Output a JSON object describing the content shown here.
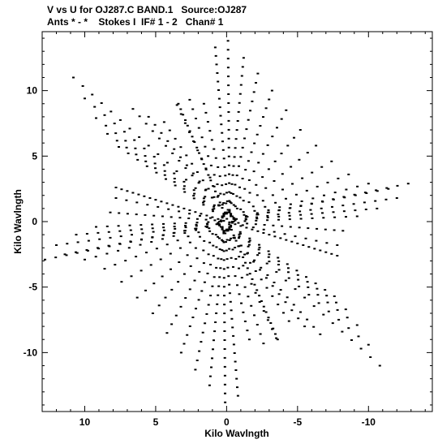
{
  "header": {
    "line1": "V vs U for OJ287.C BAND.1   Source:OJ287",
    "line2": "Ants * - *    Stokes I  IF# 1 - 2   Chan# 1"
  },
  "chart_data": {
    "type": "scatter",
    "title": "V vs U for OJ287.C BAND.1   Source:OJ287",
    "subtitle": "Ants * - *    Stokes I  IF# 1 - 2   Chan# 1",
    "xlabel": "Kilo Wavlngth",
    "ylabel": "Kilo Wavlngth",
    "xlim": [
      13,
      -14.5
    ],
    "ylim": [
      -14.5,
      14.5
    ],
    "x_reversed": true,
    "x_ticks": [
      {
        "value": 10,
        "label": "10"
      },
      {
        "value": 5,
        "label": "5"
      },
      {
        "value": 0,
        "label": "0"
      },
      {
        "value": -5,
        "label": "-5"
      },
      {
        "value": -10,
        "label": "-10"
      }
    ],
    "y_ticks": [
      {
        "value": 10,
        "label": "10"
      },
      {
        "value": 5,
        "label": "5"
      },
      {
        "value": 0,
        "label": "0"
      },
      {
        "value": -5,
        "label": "-5"
      },
      {
        "value": -10,
        "label": "-10"
      }
    ],
    "grid": false,
    "marker_color": "#000000",
    "tracks": [
      {
        "start": [
          10.8,
          11.0
        ],
        "end": [
          0.2,
          0.6
        ],
        "points": 17
      },
      {
        "start": [
          10.0,
          9.4
        ],
        "end": [
          0.2,
          0.5
        ],
        "points": 15
      },
      {
        "start": [
          9.2,
          7.9
        ],
        "end": [
          0.2,
          0.4
        ],
        "points": 14
      },
      {
        "start": [
          8.4,
          6.7
        ],
        "end": [
          0.3,
          0.4
        ],
        "points": 13
      },
      {
        "start": [
          7.6,
          5.7
        ],
        "end": [
          0.3,
          0.3
        ],
        "points": 12
      },
      {
        "start": [
          6.6,
          8.6
        ],
        "end": [
          0.1,
          0.7
        ],
        "points": 15
      },
      {
        "start": [
          5.5,
          8.0
        ],
        "end": [
          0.1,
          0.6
        ],
        "points": 13
      },
      {
        "start": [
          4.4,
          7.6
        ],
        "end": [
          0.1,
          0.6
        ],
        "points": 12
      },
      {
        "start": [
          3.5,
          8.9
        ],
        "end": [
          0.0,
          0.6
        ],
        "points": 13
      },
      {
        "start": [
          2.6,
          9.3
        ],
        "end": [
          0.0,
          0.7
        ],
        "points": 13
      },
      {
        "start": [
          1.6,
          9.0
        ],
        "end": [
          -0.1,
          0.7
        ],
        "points": 13
      },
      {
        "start": [
          0.8,
          13.3
        ],
        "end": [
          -0.1,
          0.9
        ],
        "points": 20
      },
      {
        "start": [
          -0.1,
          13.8
        ],
        "end": [
          -0.2,
          0.9
        ],
        "points": 20
      },
      {
        "start": [
          -1.2,
          12.5
        ],
        "end": [
          -0.2,
          0.8
        ],
        "points": 18
      },
      {
        "start": [
          -2.2,
          11.3
        ],
        "end": [
          -0.2,
          0.7
        ],
        "points": 16
      },
      {
        "start": [
          -3.2,
          10.0
        ],
        "end": [
          -0.3,
          0.6
        ],
        "points": 15
      },
      {
        "start": [
          -4.2,
          8.5
        ],
        "end": [
          -0.3,
          0.5
        ],
        "points": 13
      },
      {
        "start": [
          -5.2,
          7.0
        ],
        "end": [
          -0.3,
          0.4
        ],
        "points": 12
      },
      {
        "start": [
          -6.3,
          5.8
        ],
        "end": [
          -0.4,
          0.4
        ],
        "points": 11
      },
      {
        "start": [
          -7.4,
          4.6
        ],
        "end": [
          -0.5,
          0.3
        ],
        "points": 11
      },
      {
        "start": [
          -8.6,
          3.6
        ],
        "end": [
          -0.5,
          0.2
        ],
        "points": 12
      },
      {
        "start": [
          -10.0,
          2.9
        ],
        "end": [
          -0.6,
          0.2
        ],
        "points": 13
      },
      {
        "start": [
          -11.4,
          2.5
        ],
        "end": [
          -0.6,
          0.2
        ],
        "points": 15
      },
      {
        "start": [
          -12.8,
          2.9
        ],
        "end": [
          -0.7,
          0.2
        ],
        "points": 17
      },
      {
        "start": [
          -12.0,
          1.8
        ],
        "end": [
          -0.6,
          0.1
        ],
        "points": 16
      },
      {
        "start": [
          -10.6,
          1.0
        ],
        "end": [
          -0.6,
          0.1
        ],
        "points": 14
      },
      {
        "start": [
          -9.2,
          0.4
        ],
        "end": [
          -0.5,
          0.0
        ],
        "points": 12
      },
      {
        "start": [
          -8.2,
          -0.7
        ],
        "end": [
          0.4,
          0.0
        ],
        "points": 15
      },
      {
        "start": [
          -7.8,
          -1.8
        ],
        "end": [
          -0.4,
          -0.1
        ],
        "points": 11
      },
      {
        "start": [
          -10.8,
          -11.0
        ],
        "end": [
          -0.2,
          -0.6
        ],
        "points": 17
      },
      {
        "start": [
          -10.0,
          -9.4
        ],
        "end": [
          -0.2,
          -0.5
        ],
        "points": 15
      },
      {
        "start": [
          -9.2,
          -7.9
        ],
        "end": [
          -0.2,
          -0.4
        ],
        "points": 14
      },
      {
        "start": [
          -8.4,
          -6.7
        ],
        "end": [
          -0.3,
          -0.4
        ],
        "points": 13
      },
      {
        "start": [
          -7.6,
          -5.7
        ],
        "end": [
          -0.3,
          -0.3
        ],
        "points": 12
      },
      {
        "start": [
          -6.6,
          -8.6
        ],
        "end": [
          -0.1,
          -0.7
        ],
        "points": 15
      },
      {
        "start": [
          -5.5,
          -8.0
        ],
        "end": [
          -0.1,
          -0.6
        ],
        "points": 13
      },
      {
        "start": [
          -4.4,
          -7.6
        ],
        "end": [
          -0.1,
          -0.6
        ],
        "points": 12
      },
      {
        "start": [
          -3.5,
          -8.9
        ],
        "end": [
          0.0,
          -0.6
        ],
        "points": 13
      },
      {
        "start": [
          -2.6,
          -9.3
        ],
        "end": [
          0.0,
          -0.7
        ],
        "points": 13
      },
      {
        "start": [
          -1.6,
          -9.0
        ],
        "end": [
          0.1,
          -0.7
        ],
        "points": 13
      },
      {
        "start": [
          -0.8,
          -13.3
        ],
        "end": [
          0.1,
          -0.9
        ],
        "points": 20
      },
      {
        "start": [
          0.1,
          -13.8
        ],
        "end": [
          0.2,
          -0.9
        ],
        "points": 20
      },
      {
        "start": [
          1.2,
          -12.5
        ],
        "end": [
          0.2,
          -0.8
        ],
        "points": 18
      },
      {
        "start": [
          2.2,
          -11.3
        ],
        "end": [
          0.2,
          -0.7
        ],
        "points": 16
      },
      {
        "start": [
          3.2,
          -10.0
        ],
        "end": [
          0.3,
          -0.6
        ],
        "points": 15
      },
      {
        "start": [
          4.2,
          -8.5
        ],
        "end": [
          0.3,
          -0.5
        ],
        "points": 13
      },
      {
        "start": [
          5.2,
          -7.0
        ],
        "end": [
          0.3,
          -0.4
        ],
        "points": 12
      },
      {
        "start": [
          6.3,
          -5.8
        ],
        "end": [
          0.4,
          -0.4
        ],
        "points": 11
      },
      {
        "start": [
          7.4,
          -4.6
        ],
        "end": [
          0.5,
          -0.3
        ],
        "points": 11
      },
      {
        "start": [
          8.6,
          -3.6
        ],
        "end": [
          0.5,
          -0.2
        ],
        "points": 12
      },
      {
        "start": [
          10.0,
          -2.9
        ],
        "end": [
          0.6,
          -0.2
        ],
        "points": 13
      },
      {
        "start": [
          11.4,
          -2.5
        ],
        "end": [
          0.6,
          -0.2
        ],
        "points": 15
      },
      {
        "start": [
          12.8,
          -2.9
        ],
        "end": [
          0.7,
          -0.2
        ],
        "points": 17
      },
      {
        "start": [
          12.0,
          -1.8
        ],
        "end": [
          0.6,
          -0.1
        ],
        "points": 16
      },
      {
        "start": [
          10.6,
          -1.0
        ],
        "end": [
          0.6,
          -0.1
        ],
        "points": 14
      },
      {
        "start": [
          9.2,
          -0.4
        ],
        "end": [
          0.5,
          0.0
        ],
        "points": 12
      },
      {
        "start": [
          8.2,
          0.7
        ],
        "end": [
          -0.4,
          0.0
        ],
        "points": 15
      },
      {
        "start": [
          7.8,
          1.8
        ],
        "end": [
          0.4,
          0.1
        ],
        "points": 11
      },
      {
        "start": [
          3.4,
          9.0
        ],
        "end": [
          -3.6,
          -9.0
        ],
        "points": 44
      },
      {
        "start": [
          7.8,
          2.6
        ],
        "end": [
          -7.8,
          -2.6
        ],
        "points": 40
      }
    ]
  }
}
